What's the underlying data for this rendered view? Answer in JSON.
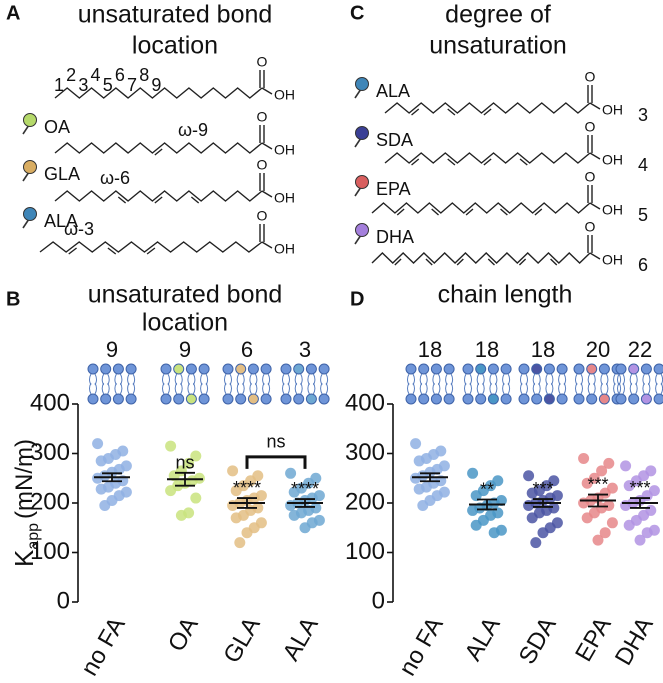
{
  "panel_a": {
    "letter": "A",
    "title_lines": [
      "unsaturated bond",
      "location"
    ],
    "carbon_numbers": [
      1,
      2,
      3,
      4,
      5,
      6,
      7,
      8,
      9
    ],
    "acid_group": "OH",
    "carbonyl": "O",
    "molecules": [
      {
        "name": "OA",
        "omega": "ω-9",
        "color": "#b5d96a"
      },
      {
        "name": "GLA",
        "omega": "ω-6",
        "color": "#d9ad62"
      },
      {
        "name": "ALA",
        "omega": "ω-3",
        "color": "#3f86b8"
      }
    ]
  },
  "panel_c": {
    "letter": "C",
    "title_lines": [
      "degree of",
      "unsaturation"
    ],
    "acid_group": "OH",
    "carbonyl": "O",
    "molecules": [
      {
        "name": "ALA",
        "double_bonds": 3,
        "color": "#3f86b8"
      },
      {
        "name": "SDA",
        "double_bonds": 4,
        "color": "#3a3f95"
      },
      {
        "name": "EPA",
        "double_bonds": 5,
        "color": "#d95f5f"
      },
      {
        "name": "DHA",
        "double_bonds": 6,
        "color": "#a47fdc"
      }
    ]
  },
  "chart_data": [
    {
      "type": "dot",
      "letter": "B",
      "title_lines": [
        "unsaturated bond",
        "location"
      ],
      "y_label": "K",
      "y_label_sub": "app",
      "y_label_unit": "(mN/m)",
      "categories": [
        "no FA",
        "OA",
        "GLA",
        "ALA"
      ],
      "top_labels": [
        9,
        9,
        6,
        3
      ],
      "colors": [
        "#8fb0e3",
        "#c9e37e",
        "#e3be84",
        "#6ea8d2"
      ],
      "points": [
        [
          320,
          305,
          298,
          290,
          285,
          275,
          268,
          262,
          255,
          250,
          245,
          240,
          232,
          228,
          222,
          215,
          205,
          195
        ],
        [
          315,
          295,
          280,
          265,
          255,
          250,
          245,
          240,
          235,
          225,
          210,
          180,
          175
        ],
        [
          265,
          255,
          245,
          235,
          225,
          215,
          210,
          205,
          200,
          195,
          190,
          185,
          175,
          170,
          160,
          150,
          140,
          120
        ],
        [
          260,
          250,
          240,
          230,
          222,
          215,
          210,
          205,
          200,
          195,
          190,
          185,
          180,
          175,
          165,
          160,
          150
        ]
      ],
      "mean": [
        252,
        248,
        200,
        200
      ],
      "sem": [
        8,
        13,
        10,
        8
      ],
      "annotations": [
        null,
        "ns",
        "****",
        "****"
      ],
      "bracket": {
        "label": "ns",
        "categories": [
          "GLA",
          "ALA"
        ]
      },
      "ylim": [
        0,
        400
      ],
      "yticks": [
        0,
        100,
        200,
        300,
        400
      ]
    },
    {
      "type": "dot",
      "letter": "D",
      "title_lines": [
        "chain length"
      ],
      "categories": [
        "no FA",
        "ALA",
        "SDA",
        "EPA",
        "DHA"
      ],
      "top_labels": [
        18,
        18,
        18,
        20,
        22
      ],
      "colors": [
        "#8fb0e3",
        "#4a96c6",
        "#4b55a3",
        "#e6878a",
        "#b293e3"
      ],
      "points": [
        [
          320,
          305,
          298,
          290,
          285,
          275,
          268,
          262,
          255,
          250,
          245,
          240,
          232,
          228,
          222,
          215,
          205,
          195
        ],
        [
          260,
          245,
          235,
          225,
          215,
          205,
          200,
          195,
          190,
          185,
          180,
          175,
          165,
          155,
          145,
          140
        ],
        [
          255,
          245,
          235,
          225,
          220,
          215,
          210,
          205,
          200,
          195,
          190,
          185,
          180,
          170,
          160,
          150,
          140,
          120
        ],
        [
          290,
          280,
          265,
          250,
          240,
          230,
          220,
          210,
          205,
          200,
          195,
          190,
          180,
          170,
          160,
          140,
          125
        ],
        [
          275,
          265,
          255,
          245,
          235,
          225,
          215,
          205,
          200,
          195,
          185,
          175,
          165,
          155,
          145,
          140,
          125
        ]
      ],
      "mean": [
        252,
        197,
        200,
        205,
        200
      ],
      "sem": [
        8,
        10,
        8,
        12,
        10
      ],
      "annotations": [
        null,
        "**",
        "***",
        "***",
        "***"
      ],
      "ylim": [
        0,
        400
      ],
      "yticks": [
        0,
        100,
        200,
        300,
        400
      ]
    }
  ]
}
